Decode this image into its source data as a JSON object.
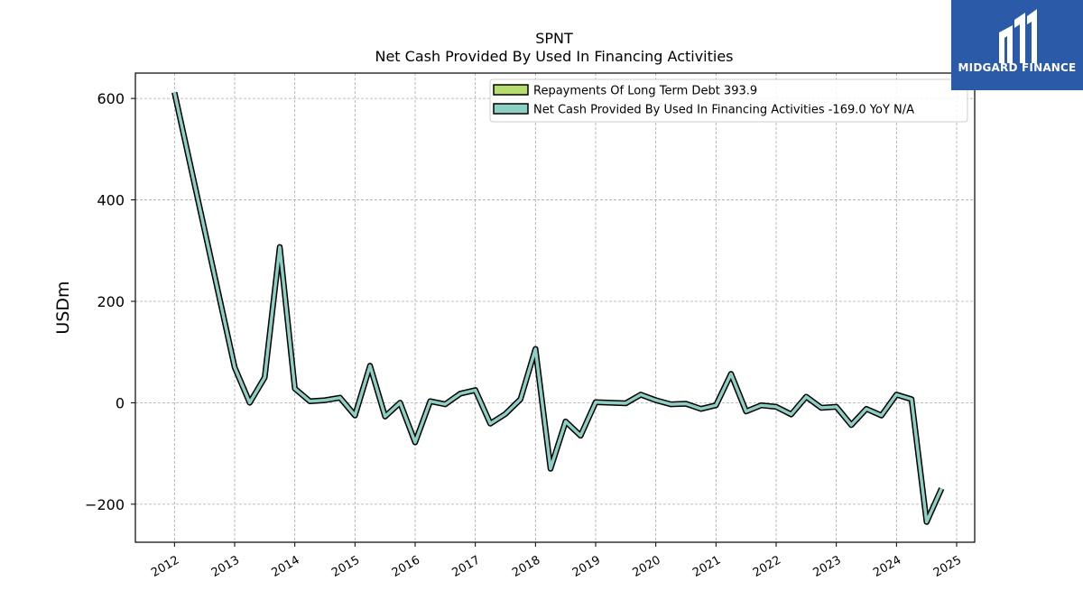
{
  "header": {
    "ticker": "SPNT",
    "subtitle": "Net Cash Provided By Used In Financing Activities"
  },
  "logo": {
    "text": "MIDGARD FINANCE",
    "background": "#2a5aa8"
  },
  "chart_data": {
    "type": "line",
    "title": "SPNT",
    "subtitle": "Net Cash Provided By Used In Financing Activities",
    "ylabel": "USDm",
    "xlabel": "",
    "ylim": [
      -275,
      650
    ],
    "yticks": [
      -200,
      0,
      200,
      400,
      600
    ],
    "ytick_labels": [
      "−200",
      "0",
      "200",
      "400",
      "600"
    ],
    "xlim": [
      2011.35,
      2025.3
    ],
    "xticks": [
      2012,
      2013,
      2014,
      2015,
      2016,
      2017,
      2018,
      2019,
      2020,
      2021,
      2022,
      2023,
      2024,
      2025
    ],
    "xtick_labels": [
      "2012",
      "2013",
      "2014",
      "2015",
      "2016",
      "2017",
      "2018",
      "2019",
      "2020",
      "2021",
      "2022",
      "2023",
      "2024",
      "2025"
    ],
    "grid": true,
    "legend_placement": "top-right",
    "series": [
      {
        "name": "Repayments Of Long Term Debt",
        "legend_label": "Repayments Of Long Term Debt  393.9",
        "color": "#b5dc6e",
        "x": [],
        "y": []
      },
      {
        "name": "Net Cash Provided By Used In Financing Activities",
        "legend_label": "Net Cash Provided By Used In Financing Activities  -169.0 YoY N/A",
        "color": "#8ecfc4",
        "x": [
          2012.0,
          2013.0,
          2013.25,
          2013.5,
          2013.75,
          2014.0,
          2014.25,
          2014.5,
          2014.75,
          2015.0,
          2015.25,
          2015.5,
          2015.75,
          2016.0,
          2016.25,
          2016.5,
          2016.75,
          2017.0,
          2017.25,
          2017.5,
          2017.75,
          2018.0,
          2018.25,
          2018.5,
          2018.75,
          2019.0,
          2019.25,
          2019.5,
          2019.75,
          2020.0,
          2020.25,
          2020.5,
          2020.75,
          2021.0,
          2021.25,
          2021.5,
          2021.75,
          2022.0,
          2022.25,
          2022.5,
          2022.75,
          2023.0,
          2023.25,
          2023.5,
          2023.75,
          2024.0,
          2024.25,
          2024.5,
          2024.75
        ],
        "y": [
          612,
          70,
          0,
          50,
          307,
          28,
          3,
          5,
          10,
          -25,
          73,
          -27,
          0,
          -78,
          3,
          -3,
          18,
          25,
          -41,
          -22,
          7,
          106,
          -130,
          -37,
          -65,
          1,
          0,
          -1,
          16,
          5,
          -3,
          -2,
          -12,
          -5,
          57,
          -17,
          -5,
          -8,
          -23,
          12,
          -10,
          -8,
          -44,
          -12,
          -25,
          16,
          7,
          -235,
          -169
        ]
      }
    ]
  }
}
